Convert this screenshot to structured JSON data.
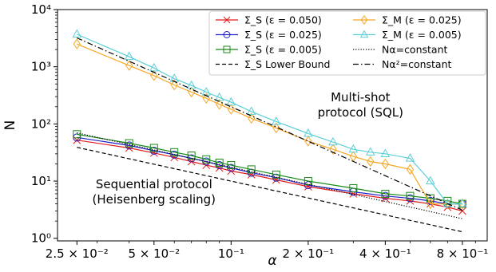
{
  "chart_data": {
    "type": "line",
    "xscale": "log",
    "yscale": "log",
    "xlim": [
      0.021,
      1.0
    ],
    "ylim": [
      0.9,
      10000
    ],
    "xlabel": "α",
    "ylabel": "N",
    "grid": false,
    "legend_placement": "top-right",
    "xticks": [
      {
        "value": 0.025,
        "label": "2.5 × 10⁻²"
      },
      {
        "value": 0.05,
        "label": "5 × 10⁻²"
      },
      {
        "value": 0.1,
        "label": "10⁻¹"
      },
      {
        "value": 0.2,
        "label": "2 × 10⁻¹"
      },
      {
        "value": 0.4,
        "label": "4 × 10⁻¹"
      },
      {
        "value": 0.8,
        "label": "8 × 10⁻¹"
      }
    ],
    "yticks": [
      {
        "value": 1,
        "label": "10⁰"
      },
      {
        "value": 10,
        "label": "10¹"
      },
      {
        "value": 100,
        "label": "10²"
      },
      {
        "value": 1000,
        "label": "10³"
      },
      {
        "value": 10000,
        "label": "10⁴"
      }
    ],
    "annotations": [
      {
        "lines": [
          "Multi-shot",
          "protocol (SQL)"
        ],
        "x": 0.32,
        "y": 250
      },
      {
        "lines": [
          "Sequential protocol",
          "(Heisenberg scaling)"
        ],
        "x": 0.05,
        "y": 7.5
      }
    ],
    "series": [
      {
        "name": "Σ_S (ε = 0.050)",
        "color": "#e41a1c",
        "marker": "x",
        "style": "solid",
        "x": [
          0.025,
          0.04,
          0.05,
          0.06,
          0.07,
          0.08,
          0.09,
          0.1,
          0.12,
          0.15,
          0.2,
          0.3,
          0.4,
          0.5,
          0.6,
          0.7,
          0.8
        ],
        "y": [
          52,
          38,
          31,
          26,
          22,
          19,
          17,
          15,
          13,
          10.5,
          8,
          6,
          5,
          4.5,
          4,
          3.5,
          3
        ]
      },
      {
        "name": "Σ_S (ε = 0.025)",
        "color": "#1f1fcc",
        "marker": "o",
        "style": "solid",
        "x": [
          0.025,
          0.04,
          0.05,
          0.06,
          0.07,
          0.08,
          0.09,
          0.1,
          0.12,
          0.15,
          0.2,
          0.3,
          0.4,
          0.5,
          0.6,
          0.7,
          0.8
        ],
        "y": [
          58,
          42,
          34,
          29,
          25,
          22,
          19,
          17,
          14,
          11.5,
          8.5,
          6.5,
          5.5,
          5,
          4.5,
          4,
          4
        ]
      },
      {
        "name": "Σ_S (ε = 0.005)",
        "color": "#1a8a1a",
        "marker": "s",
        "style": "solid",
        "x": [
          0.025,
          0.04,
          0.05,
          0.06,
          0.07,
          0.08,
          0.09,
          0.1,
          0.12,
          0.15,
          0.2,
          0.3,
          0.4,
          0.5,
          0.6,
          0.7,
          0.8
        ],
        "y": [
          66,
          46,
          38,
          32,
          28,
          24,
          21,
          19,
          16,
          13,
          10,
          7.5,
          6,
          5.5,
          5,
          4.5,
          4
        ]
      },
      {
        "name": "Σ_S Lower Bound",
        "color": "#000000",
        "marker": "none",
        "style": "dashed",
        "x": [
          0.025,
          0.8
        ],
        "y": [
          39,
          1.3
        ]
      },
      {
        "name": "Σ_M (ε = 0.025)",
        "color": "#f5a623",
        "marker": "d",
        "style": "solid",
        "x": [
          0.025,
          0.04,
          0.05,
          0.06,
          0.07,
          0.08,
          0.09,
          0.1,
          0.12,
          0.15,
          0.2,
          0.25,
          0.3,
          0.35,
          0.4,
          0.5,
          0.6,
          0.7,
          0.8
        ],
        "y": [
          2500,
          1050,
          700,
          480,
          360,
          280,
          220,
          180,
          125,
          85,
          50,
          36,
          27,
          22,
          20,
          16,
          4,
          4,
          4
        ]
      },
      {
        "name": "Σ_M (ε = 0.005)",
        "color": "#5bcfd6",
        "marker": "^",
        "style": "solid",
        "x": [
          0.025,
          0.04,
          0.05,
          0.06,
          0.07,
          0.08,
          0.09,
          0.1,
          0.12,
          0.15,
          0.2,
          0.25,
          0.3,
          0.35,
          0.4,
          0.5,
          0.6,
          0.7,
          0.8
        ],
        "y": [
          3700,
          1500,
          950,
          620,
          470,
          360,
          290,
          240,
          165,
          110,
          68,
          48,
          36,
          32,
          30,
          25,
          10,
          4,
          4
        ]
      },
      {
        "name": "Nα=constant",
        "color": "#000000",
        "marker": "none",
        "style": "dotted",
        "x": [
          0.025,
          0.8
        ],
        "y": [
          70,
          2.2
        ]
      },
      {
        "name": "Nα²=constant",
        "color": "#000000",
        "marker": "none",
        "style": "dashdot",
        "x": [
          0.025,
          0.8
        ],
        "y": [
          3200,
          3.1
        ]
      }
    ]
  }
}
